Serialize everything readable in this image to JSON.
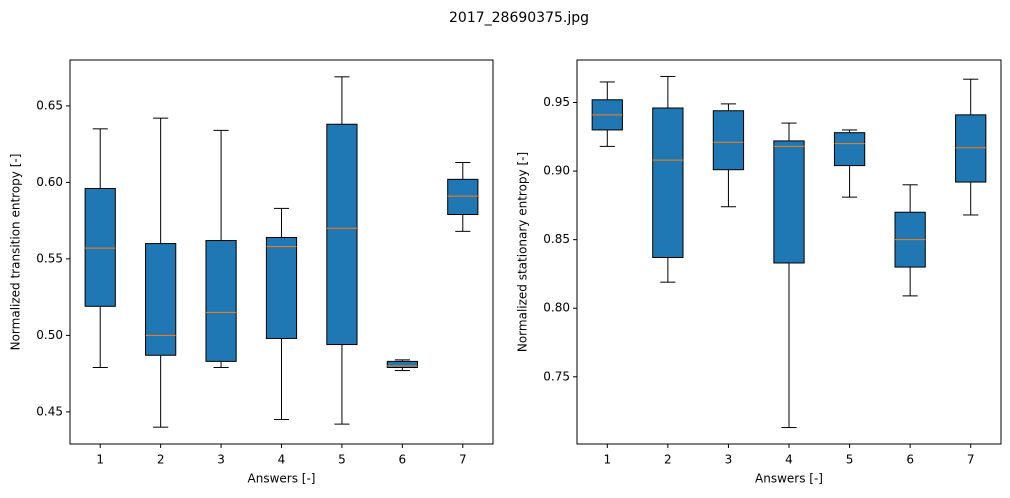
{
  "title": "2017_28690375.jpg",
  "chart_data": [
    {
      "type": "box",
      "xlabel": "Answers [-]",
      "ylabel": "Normalized transition entropy [-]",
      "categories": [
        "1",
        "2",
        "3",
        "4",
        "5",
        "6",
        "7"
      ],
      "box_color": "#1f77b4",
      "median_color": "#ff7f0e",
      "ylim": [
        0.429,
        0.68
      ],
      "yticks": [
        0.45,
        0.5,
        0.55,
        0.6,
        0.65
      ],
      "yticks_labels": [
        "0.45",
        "0.50",
        "0.55",
        "0.60",
        "0.65"
      ],
      "boxes": [
        {
          "whislo": 0.479,
          "q1": 0.519,
          "med": 0.557,
          "q3": 0.596,
          "whishi": 0.635
        },
        {
          "whislo": 0.44,
          "q1": 0.487,
          "med": 0.5,
          "q3": 0.56,
          "whishi": 0.642
        },
        {
          "whislo": 0.479,
          "q1": 0.483,
          "med": 0.515,
          "q3": 0.562,
          "whishi": 0.634
        },
        {
          "whislo": 0.445,
          "q1": 0.498,
          "med": 0.558,
          "q3": 0.564,
          "whishi": 0.583
        },
        {
          "whislo": 0.442,
          "q1": 0.494,
          "med": 0.57,
          "q3": 0.638,
          "whishi": 0.669
        },
        {
          "whislo": 0.477,
          "q1": 0.479,
          "med": 0.48,
          "q3": 0.483,
          "whishi": 0.484
        },
        {
          "whislo": 0.568,
          "q1": 0.579,
          "med": 0.591,
          "q3": 0.602,
          "whishi": 0.613
        }
      ]
    },
    {
      "type": "box",
      "xlabel": "Answers [-]",
      "ylabel": "Normalized stationary entropy [-]",
      "categories": [
        "1",
        "2",
        "3",
        "4",
        "5",
        "6",
        "7"
      ],
      "box_color": "#1f77b4",
      "median_color": "#ff7f0e",
      "ylim": [
        0.701,
        0.981
      ],
      "yticks": [
        0.75,
        0.8,
        0.85,
        0.9,
        0.95
      ],
      "yticks_labels": [
        "0.75",
        "0.80",
        "0.85",
        "0.90",
        "0.95"
      ],
      "boxes": [
        {
          "whislo": 0.918,
          "q1": 0.93,
          "med": 0.941,
          "q3": 0.952,
          "whishi": 0.965
        },
        {
          "whislo": 0.819,
          "q1": 0.837,
          "med": 0.908,
          "q3": 0.946,
          "whishi": 0.969
        },
        {
          "whislo": 0.874,
          "q1": 0.901,
          "med": 0.921,
          "q3": 0.944,
          "whishi": 0.949
        },
        {
          "whislo": 0.713,
          "q1": 0.833,
          "med": 0.918,
          "q3": 0.922,
          "whishi": 0.935
        },
        {
          "whislo": 0.881,
          "q1": 0.904,
          "med": 0.92,
          "q3": 0.928,
          "whishi": 0.93
        },
        {
          "whislo": 0.809,
          "q1": 0.83,
          "med": 0.85,
          "q3": 0.87,
          "whishi": 0.89
        },
        {
          "whislo": 0.868,
          "q1": 0.892,
          "med": 0.917,
          "q3": 0.941,
          "whishi": 0.967
        }
      ]
    }
  ]
}
